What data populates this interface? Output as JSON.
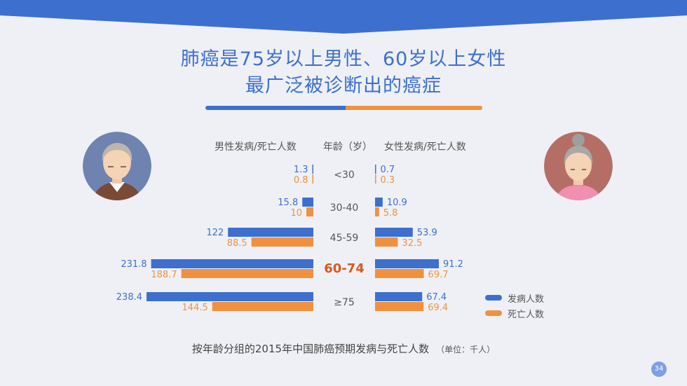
{
  "title": {
    "line1": "肺癌是75岁以上男性、60岁以上女性",
    "line2": "最广泛被诊断出的癌症"
  },
  "headers": {
    "male": "男性发病/死亡人数",
    "age": "年龄（岁）",
    "female": "女性发病/死亡人数"
  },
  "caption": {
    "text": "按年龄分组的2015年中国肺癌预期发病与死亡人数",
    "unit": "（单位：千人）"
  },
  "page_number": "34",
  "colors": {
    "incidence": "#3d6fcf",
    "death": "#f0913f",
    "highlight": "#d9591e",
    "banner": "#3d6fcf",
    "male_avatar_bg": "#6f83b0",
    "female_avatar_bg": "#b56e66"
  },
  "icons": {
    "male": "elderly-man-avatar-icon",
    "female": "elderly-woman-avatar-icon"
  },
  "chart_data": {
    "type": "bar",
    "orientation": "horizontal-butterfly",
    "categories": [
      "<30",
      "30-40",
      "45-59",
      "60-74",
      "≥75"
    ],
    "highlight_category": "60-74",
    "male": {
      "series": [
        {
          "name": "发病人数",
          "values": [
            1.3,
            15.8,
            122,
            231.8,
            238.4
          ]
        },
        {
          "name": "死亡人数",
          "values": [
            0.8,
            10,
            88.5,
            188.7,
            144.5
          ]
        }
      ]
    },
    "female": {
      "series": [
        {
          "name": "发病人数",
          "values": [
            0.7,
            10.9,
            53.9,
            91.2,
            67.4
          ]
        },
        {
          "name": "死亡人数",
          "values": [
            0.3,
            5.8,
            32.5,
            69.7,
            69.4
          ]
        }
      ]
    },
    "legend": [
      "发病人数",
      "死亡人数"
    ],
    "legend_position": "bottom-right"
  }
}
